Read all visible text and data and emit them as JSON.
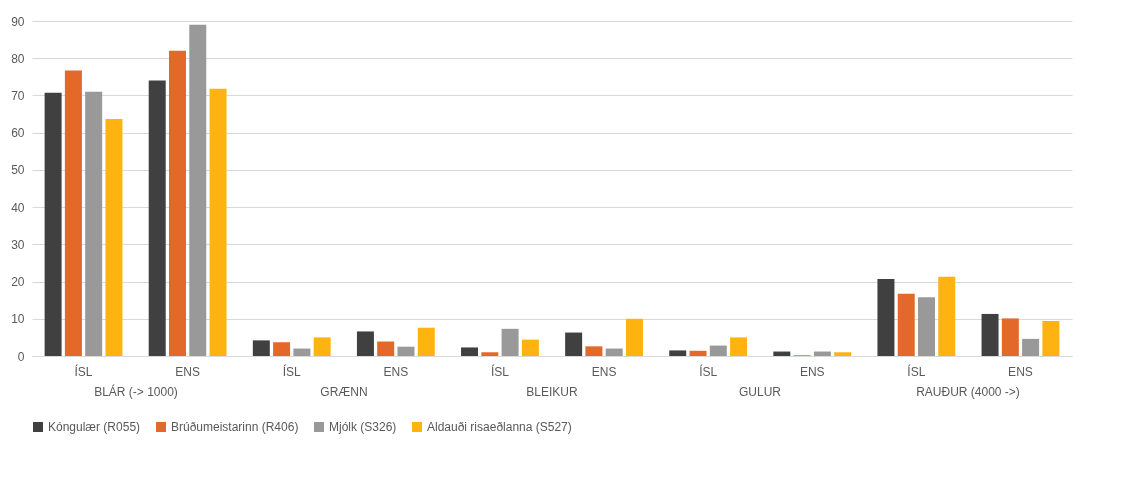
{
  "chart_data": {
    "type": "bar",
    "categories": [
      "ÍSL",
      "ENS",
      "ÍSL",
      "ENS",
      "ÍSL",
      "ENS",
      "ÍSL",
      "ENS",
      "ÍSL",
      "ENS"
    ],
    "annotations": [
      "BLÁR (-> 1000)",
      "GRÆNN",
      "BLEIKUR",
      "GULUR",
      "RAUÐUR (4000 ->)"
    ],
    "series": [
      {
        "name": "Kóngulær (R055)",
        "color": "#404040",
        "values": [
          70.7,
          74,
          4.2,
          6.6,
          2.3,
          6.3,
          1.5,
          1.2,
          20.7,
          11.3
        ]
      },
      {
        "name": "Brúðumeistarinn (R406)",
        "color": "#e3692a",
        "values": [
          76.7,
          82,
          3.7,
          3.9,
          1,
          2.6,
          1.4,
          0.2,
          16.7,
          10.1
        ]
      },
      {
        "name": "Mjólk (S326)",
        "color": "#999999",
        "values": [
          71,
          89,
          2,
          2.5,
          7.3,
          2,
          2.8,
          1.2,
          15.8,
          4.6
        ]
      },
      {
        "name": "Aldauði risaeðlanna (S527)",
        "color": "#ffb310",
        "values": [
          63.7,
          71.8,
          5,
          7.6,
          4.4,
          10,
          5,
          1,
          21.3,
          9.4
        ]
      }
    ],
    "ylim": [
      0,
      90
    ],
    "yticks": [
      0,
      10,
      20,
      30,
      40,
      50,
      60,
      70,
      80,
      90
    ],
    "grid": "y",
    "legend": "bottom"
  }
}
